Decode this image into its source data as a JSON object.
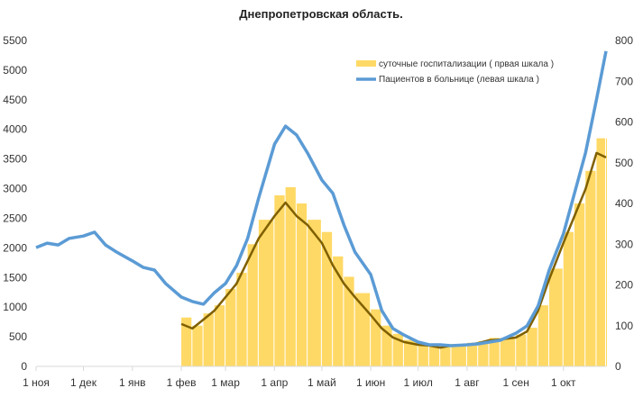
{
  "chart_data": {
    "type": "bar+line",
    "title": "Днепропетровская область.",
    "x_ticks": [
      {
        "date": "2020-11-01",
        "label": "1 ноя"
      },
      {
        "date": "2020-12-01",
        "label": "1 дек"
      },
      {
        "date": "2021-01-01",
        "label": "1 янв"
      },
      {
        "date": "2021-02-01",
        "label": "1 фев"
      },
      {
        "date": "2021-03-01",
        "label": "1 мар"
      },
      {
        "date": "2021-04-01",
        "label": "1 апр"
      },
      {
        "date": "2021-05-01",
        "label": "1 май"
      },
      {
        "date": "2021-06-01",
        "label": "1 июн"
      },
      {
        "date": "2021-07-01",
        "label": "1 июл"
      },
      {
        "date": "2021-08-01",
        "label": "1 авг"
      },
      {
        "date": "2021-09-01",
        "label": "1 сен"
      },
      {
        "date": "2021-10-01",
        "label": "1 окт"
      }
    ],
    "xlim": [
      "2020-11-01",
      "2021-10-28"
    ],
    "y_left": {
      "lim": [
        0,
        5500
      ],
      "ticks": [
        0,
        500,
        1000,
        1500,
        2000,
        2500,
        3000,
        3500,
        4000,
        4500,
        5000,
        5500
      ]
    },
    "y_right": {
      "lim": [
        0,
        800
      ],
      "ticks": [
        0,
        100,
        200,
        300,
        400,
        500,
        600,
        700,
        800
      ]
    },
    "grid": false,
    "legend_placement": "top-right",
    "series": [
      {
        "name": "суточные госпитализации ( првая шкала )",
        "type": "bar",
        "axis": "right",
        "color": "#FFD966",
        "x": [
          "2021-02-01",
          "2021-02-08",
          "2021-02-15",
          "2021-02-22",
          "2021-03-01",
          "2021-03-08",
          "2021-03-15",
          "2021-03-22",
          "2021-04-01",
          "2021-04-08",
          "2021-04-15",
          "2021-04-22",
          "2021-05-01",
          "2021-05-08",
          "2021-05-15",
          "2021-05-22",
          "2021-06-01",
          "2021-06-08",
          "2021-06-15",
          "2021-06-22",
          "2021-07-01",
          "2021-07-08",
          "2021-07-15",
          "2021-07-22",
          "2021-08-01",
          "2021-08-08",
          "2021-08-15",
          "2021-08-22",
          "2021-09-01",
          "2021-09-08",
          "2021-09-15",
          "2021-09-22",
          "2021-10-01",
          "2021-10-08",
          "2021-10-15",
          "2021-10-22",
          "2021-10-28"
        ],
        "values": [
          120,
          100,
          130,
          150,
          190,
          230,
          300,
          360,
          420,
          440,
          400,
          360,
          330,
          270,
          220,
          180,
          140,
          100,
          80,
          65,
          55,
          55,
          50,
          55,
          58,
          62,
          70,
          70,
          78,
          95,
          150,
          240,
          330,
          400,
          480,
          560,
          560
        ]
      },
      {
        "name": "",
        "type": "line",
        "axis": "right",
        "color": "#7F6000",
        "x": [
          "2021-02-01",
          "2021-02-08",
          "2021-02-15",
          "2021-02-22",
          "2021-03-01",
          "2021-03-08",
          "2021-03-15",
          "2021-03-22",
          "2021-04-01",
          "2021-04-08",
          "2021-04-15",
          "2021-04-22",
          "2021-05-01",
          "2021-05-08",
          "2021-05-15",
          "2021-05-22",
          "2021-06-01",
          "2021-06-08",
          "2021-06-15",
          "2021-06-22",
          "2021-07-01",
          "2021-07-08",
          "2021-07-15",
          "2021-07-22",
          "2021-08-01",
          "2021-08-08",
          "2021-08-15",
          "2021-08-22",
          "2021-09-01",
          "2021-09-08",
          "2021-09-15",
          "2021-09-22",
          "2021-10-01",
          "2021-10-08",
          "2021-10-15",
          "2021-10-22",
          "2021-10-28"
        ],
        "values": [
          104,
          93,
          115,
          137,
          170,
          203,
          259,
          314,
          369,
          402,
          369,
          347,
          303,
          248,
          203,
          170,
          126,
          93,
          71,
          60,
          53,
          51,
          46,
          51,
          53,
          57,
          64,
          66,
          71,
          86,
          137,
          214,
          303,
          369,
          435,
          524,
          513
        ]
      },
      {
        "name": "Пациентов в больнице (левая шкала )",
        "type": "line",
        "axis": "left",
        "color": "#5B9BD5",
        "x": [
          "2020-11-01",
          "2020-11-08",
          "2020-11-15",
          "2020-11-22",
          "2020-12-01",
          "2020-12-08",
          "2020-12-15",
          "2020-12-22",
          "2021-01-01",
          "2021-01-08",
          "2021-01-15",
          "2021-01-22",
          "2021-02-01",
          "2021-02-08",
          "2021-02-15",
          "2021-02-22",
          "2021-03-01",
          "2021-03-08",
          "2021-03-15",
          "2021-03-22",
          "2021-04-01",
          "2021-04-08",
          "2021-04-15",
          "2021-04-22",
          "2021-05-01",
          "2021-05-08",
          "2021-05-15",
          "2021-05-22",
          "2021-06-01",
          "2021-06-08",
          "2021-06-15",
          "2021-06-22",
          "2021-07-01",
          "2021-07-08",
          "2021-07-15",
          "2021-07-22",
          "2021-08-01",
          "2021-08-08",
          "2021-08-15",
          "2021-08-22",
          "2021-09-01",
          "2021-09-08",
          "2021-09-15",
          "2021-09-22",
          "2021-10-01",
          "2021-10-08",
          "2021-10-15",
          "2021-10-22",
          "2021-10-28"
        ],
        "values": [
          2005,
          2080,
          2050,
          2160,
          2200,
          2265,
          2050,
          1930,
          1780,
          1670,
          1625,
          1400,
          1170,
          1095,
          1050,
          1245,
          1400,
          1700,
          2160,
          2840,
          3750,
          4055,
          3905,
          3600,
          3145,
          2920,
          2385,
          1930,
          1550,
          940,
          640,
          530,
          410,
          365,
          365,
          350,
          365,
          380,
          410,
          440,
          560,
          685,
          1020,
          1625,
          2235,
          2920,
          3600,
          4510,
          5320
        ]
      }
    ]
  }
}
